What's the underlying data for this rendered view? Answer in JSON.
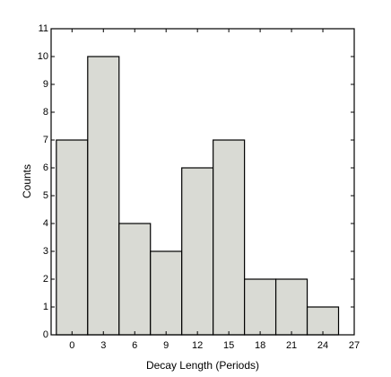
{
  "chart_data": {
    "type": "histogram",
    "xlabel": "Decay Length (Periods)",
    "ylabel": "Counts",
    "bins": [
      -1.5,
      1.5,
      4.5,
      7.5,
      10.5,
      13.5,
      16.5,
      19.5,
      22.5,
      25.5
    ],
    "values": [
      7,
      10,
      4,
      3,
      6,
      7,
      2,
      2,
      1
    ],
    "color": "#d9dad4",
    "xlim": [
      -2,
      27
    ],
    "xticks": [
      0,
      3,
      6,
      9,
      12,
      15,
      18,
      21,
      24,
      27
    ],
    "ylim": [
      0,
      11
    ],
    "yticks": [
      0,
      1,
      2,
      3,
      4,
      5,
      6,
      7,
      8,
      9,
      10,
      11
    ]
  }
}
